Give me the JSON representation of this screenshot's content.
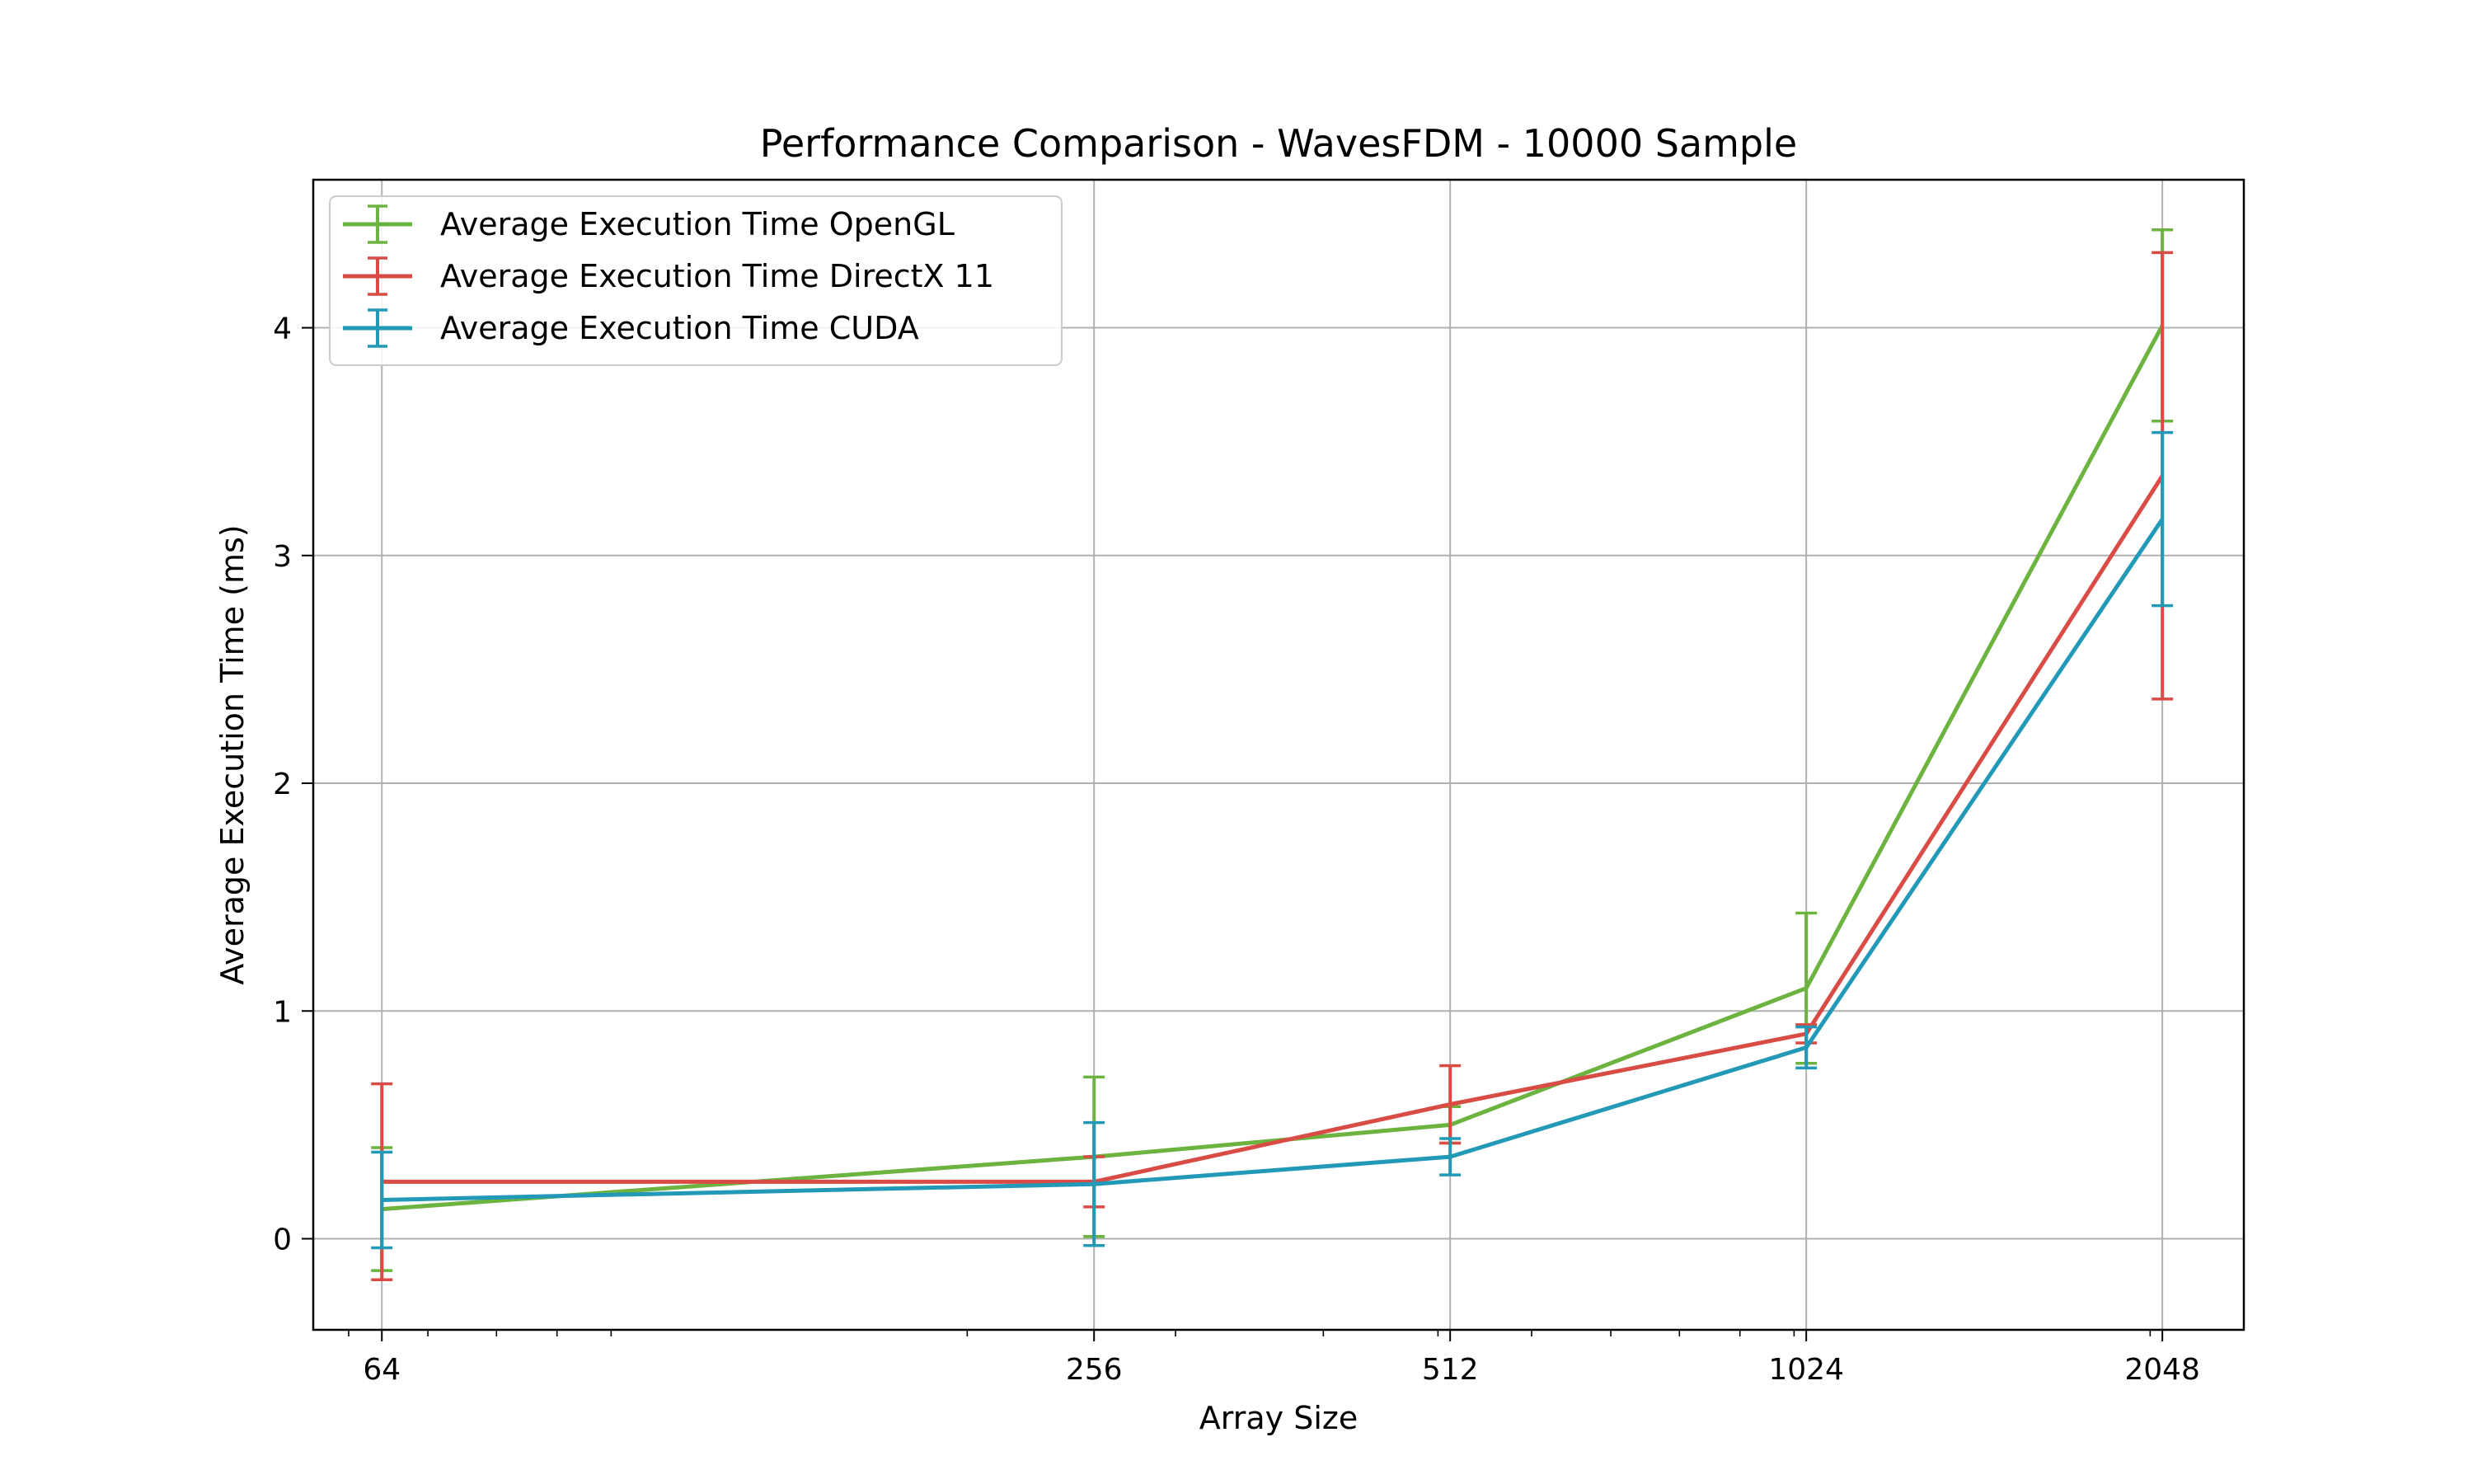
{
  "chart_data": {
    "type": "line",
    "title": "Performance Comparison - WavesFDM - 10000 Sample",
    "xlabel": "Array Size",
    "ylabel": "Average Execution Time (ms)",
    "x_scale": "log2",
    "x": [
      64,
      256,
      512,
      1024,
      2048
    ],
    "x_tick_labels": [
      "64",
      "256",
      "512",
      "1024",
      "2048"
    ],
    "xlim": [
      56,
      2400
    ],
    "ylim": [
      -0.4,
      4.65
    ],
    "y_ticks": [
      0,
      1,
      2,
      3,
      4
    ],
    "y_tick_labels": [
      "0",
      "1",
      "2",
      "3",
      "4"
    ],
    "grid": true,
    "legend_position": "upper-left",
    "series": [
      {
        "name": "Average Execution Time OpenGL",
        "color": "#6cb33f",
        "values": [
          0.13,
          0.36,
          0.5,
          1.1,
          4.01
        ],
        "errors": [
          0.27,
          0.35,
          0.08,
          0.33,
          0.42
        ]
      },
      {
        "name": "Average Execution Time DirectX 11",
        "color": "#d94c45",
        "values": [
          0.25,
          0.25,
          0.59,
          0.9,
          3.35
        ],
        "errors": [
          0.43,
          0.11,
          0.17,
          0.04,
          0.98
        ]
      },
      {
        "name": "Average Execution Time CUDA",
        "color": "#2399b8",
        "values": [
          0.17,
          0.24,
          0.36,
          0.84,
          3.16
        ],
        "errors": [
          0.21,
          0.27,
          0.08,
          0.09,
          0.38
        ]
      }
    ]
  }
}
